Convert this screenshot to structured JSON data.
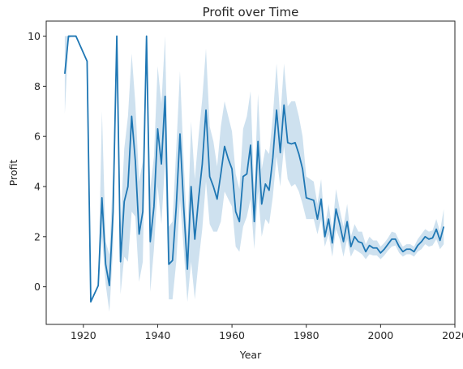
{
  "chart_data": {
    "type": "line",
    "title": "Profit over Time",
    "xlabel": "Year",
    "ylabel": "Profit",
    "xlim": [
      1910,
      2020
    ],
    "ylim": [
      -1.5,
      10.6
    ],
    "xticks": [
      1920,
      1940,
      1960,
      1980,
      2000,
      2020
    ],
    "yticks": [
      0,
      2,
      4,
      6,
      8,
      10
    ],
    "xtick_labels": [
      "1920",
      "1940",
      "1960",
      "1980",
      "2000",
      "2020"
    ],
    "ytick_labels": [
      "0",
      "2",
      "4",
      "6",
      "8",
      "10"
    ],
    "grid": false,
    "legend": "none",
    "line_color": "#1f77b4",
    "band_color": "#1f77b4",
    "series": [
      {
        "x": [
          1915,
          1916,
          1917,
          1918,
          1921,
          1922,
          1924,
          1925,
          1926,
          1927,
          1928,
          1929,
          1930,
          1931,
          1932,
          1933,
          1934,
          1935,
          1936,
          1937,
          1938,
          1939,
          1940,
          1941,
          1942,
          1943,
          1944,
          1945,
          1946,
          1947,
          1948,
          1949,
          1950,
          1951,
          1952,
          1953,
          1954,
          1955,
          1956,
          1957,
          1958,
          1959,
          1960,
          1961,
          1962,
          1963,
          1964,
          1965,
          1966,
          1967,
          1968,
          1969,
          1970,
          1971,
          1972,
          1973,
          1974,
          1975,
          1976,
          1977,
          1978,
          1979,
          1980,
          1981,
          1982,
          1983,
          1984,
          1985,
          1986,
          1987,
          1988,
          1989,
          1990,
          1991,
          1992,
          1993,
          1994,
          1995,
          1996,
          1997,
          1998,
          1999,
          2000,
          2001,
          2002,
          2003,
          2004,
          2005,
          2006,
          2007,
          2008,
          2009,
          2010,
          2011,
          2012,
          2013,
          2014,
          2015,
          2016,
          2017
        ],
        "y": [
          8.5,
          10,
          10,
          10,
          9.0,
          -0.6,
          0.05,
          3.55,
          0.9,
          0.05,
          3.0,
          10,
          1.0,
          3.4,
          4.0,
          6.8,
          5.0,
          2.1,
          3.0,
          10,
          1.8,
          3.2,
          6.3,
          4.9,
          7.6,
          0.9,
          1.05,
          3.2,
          6.1,
          3.2,
          0.7,
          4.0,
          1.9,
          3.5,
          4.9,
          7.05,
          4.4,
          4.0,
          3.5,
          4.5,
          5.6,
          5.1,
          4.7,
          3.0,
          2.6,
          4.4,
          4.5,
          5.65,
          2.6,
          5.8,
          3.3,
          4.1,
          3.85,
          5.15,
          7.05,
          5.35,
          7.25,
          5.75,
          5.7,
          5.75,
          5.3,
          4.7,
          3.55,
          3.5,
          3.45,
          2.7,
          3.5,
          2.0,
          2.7,
          1.75,
          3.1,
          2.5,
          1.8,
          2.6,
          1.6,
          2.0,
          1.8,
          1.75,
          1.4,
          1.65,
          1.55,
          1.55,
          1.35,
          1.5,
          1.7,
          1.9,
          1.9,
          1.6,
          1.4,
          1.5,
          1.5,
          1.4,
          1.65,
          1.8,
          2.0,
          1.9,
          1.95,
          2.3,
          1.85,
          2.4
        ],
        "lower": [
          6.9,
          9.9,
          10,
          10,
          9.0,
          -0.6,
          0.05,
          2.0,
          0.1,
          -1.0,
          1.5,
          9.0,
          -0.3,
          1.2,
          1.0,
          3.0,
          2.8,
          0.2,
          1.0,
          9.0,
          -0.2,
          1.5,
          4.0,
          2.5,
          5.0,
          -0.5,
          -0.5,
          1.0,
          3.5,
          1.5,
          -0.6,
          1.0,
          -0.5,
          1.0,
          2.3,
          4.2,
          2.5,
          2.2,
          2.2,
          2.6,
          3.8,
          3.5,
          3.2,
          1.6,
          1.4,
          2.4,
          2.8,
          3.5,
          1.5,
          3.8,
          2.0,
          2.7,
          2.5,
          3.6,
          5.2,
          4.0,
          5.6,
          4.3,
          4.0,
          4.1,
          3.8,
          3.3,
          2.7,
          2.7,
          2.7,
          2.1,
          2.7,
          1.6,
          2.1,
          1.2,
          2.3,
          1.9,
          1.2,
          1.9,
          1.2,
          1.5,
          1.4,
          1.3,
          1.1,
          1.3,
          1.25,
          1.25,
          1.1,
          1.25,
          1.45,
          1.6,
          1.65,
          1.35,
          1.2,
          1.3,
          1.3,
          1.2,
          1.4,
          1.5,
          1.7,
          1.6,
          1.65,
          1.9,
          1.5,
          1.7
        ],
        "upper": [
          10,
          10,
          10,
          10,
          9.0,
          -0.6,
          0.05,
          7.0,
          1.8,
          1.3,
          4.6,
          10,
          2.5,
          5.5,
          6.8,
          9.3,
          7.3,
          4.2,
          5.0,
          10,
          3.9,
          5.2,
          8.8,
          7.3,
          10.0,
          2.4,
          2.6,
          5.5,
          8.6,
          5.0,
          2.0,
          6.6,
          4.3,
          6.0,
          7.5,
          9.5,
          6.4,
          5.8,
          4.8,
          6.4,
          7.4,
          6.8,
          6.2,
          4.5,
          3.9,
          6.3,
          6.8,
          7.8,
          3.8,
          7.7,
          4.7,
          5.5,
          5.3,
          6.8,
          8.9,
          6.7,
          8.9,
          7.2,
          7.4,
          7.4,
          6.8,
          6.0,
          4.4,
          4.3,
          4.2,
          3.3,
          4.3,
          2.4,
          3.3,
          2.3,
          3.9,
          3.1,
          2.4,
          3.3,
          2.0,
          2.5,
          2.2,
          2.2,
          1.7,
          2.0,
          1.85,
          1.85,
          1.6,
          1.75,
          1.95,
          2.2,
          2.15,
          1.85,
          1.6,
          1.7,
          1.7,
          1.6,
          1.9,
          2.1,
          2.3,
          2.2,
          2.25,
          2.7,
          2.2,
          3.1
        ]
      }
    ]
  }
}
